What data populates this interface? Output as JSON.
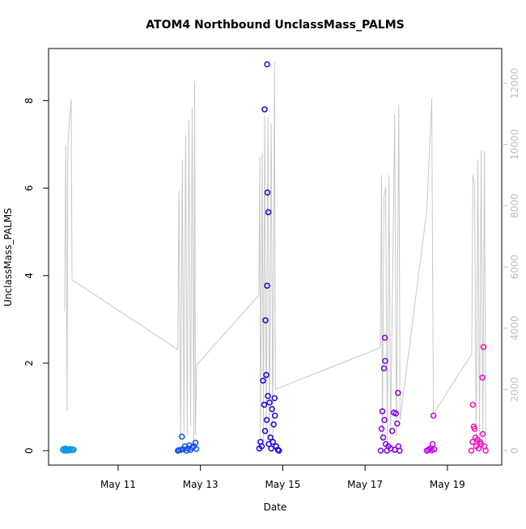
{
  "chart_data": {
    "type": "scatter",
    "title": "ATOM4 Northbound UnclassMass_PALMS",
    "x_label": "Date",
    "y_label": "UnclassMass_PALMS",
    "xlim": [
      9.31,
      20.32
    ],
    "xticks": [
      {
        "value": 11,
        "label": "May 11"
      },
      {
        "value": 13,
        "label": "May 13"
      },
      {
        "value": 15,
        "label": "May 15"
      },
      {
        "value": 17,
        "label": "May 17"
      },
      {
        "value": 19,
        "label": "May 19"
      }
    ],
    "ylim": [
      -0.33,
      9.19
    ],
    "yticks": [
      0,
      2,
      4,
      6,
      8
    ],
    "y2lim": [
      -476,
      13137
    ],
    "y2ticks": [
      0,
      2000,
      4000,
      6000,
      8000,
      10000,
      12000
    ],
    "y2_color": "#bebebe",
    "series": [
      {
        "color": "#0a9ae6",
        "x": [
          9.66,
          9.68,
          9.7,
          9.72,
          9.74,
          9.76,
          9.78,
          9.8,
          9.83,
          9.86,
          9.89,
          9.92
        ],
        "values": [
          0.02,
          0.04,
          0.0,
          0.05,
          0.01,
          0.03,
          0.0,
          0.02,
          0.04,
          0.01,
          0.03,
          0.02
        ]
      },
      {
        "color": "#1050e8",
        "x": [
          12.45,
          12.48,
          12.52,
          12.55,
          12.58,
          12.62,
          12.66,
          12.7,
          12.73,
          12.76,
          12.8,
          12.84,
          12.88,
          12.9
        ],
        "values": [
          0.0,
          0.01,
          0.02,
          0.32,
          0.03,
          0.1,
          0.0,
          0.05,
          0.12,
          0.02,
          0.07,
          0.1,
          0.18,
          0.04
        ]
      },
      {
        "color": "#2200dd",
        "x": [
          14.43,
          14.46,
          14.49,
          14.52,
          14.55,
          14.56,
          14.57,
          14.58,
          14.6,
          14.61,
          14.62,
          14.62,
          14.63,
          14.64,
          14.65,
          14.66,
          14.68,
          14.7,
          14.72,
          14.74,
          14.76,
          14.78,
          14.8,
          14.81,
          14.84,
          14.88,
          14.91
        ],
        "values": [
          0.05,
          0.2,
          0.1,
          1.6,
          1.05,
          7.8,
          0.45,
          2.98,
          1.73,
          0.7,
          8.83,
          3.77,
          5.9,
          1.25,
          5.45,
          0.15,
          1.1,
          0.3,
          0.05,
          0.95,
          0.2,
          0.6,
          1.2,
          0.8,
          0.1,
          0.02,
          0.0
        ]
      },
      {
        "color": "#8000e0",
        "x": [
          17.38,
          17.4,
          17.42,
          17.44,
          17.46,
          17.47,
          17.48,
          17.49,
          17.5,
          17.53,
          17.57,
          17.62,
          17.66,
          17.7,
          17.72,
          17.75,
          17.78,
          17.8,
          17.81,
          17.84
        ],
        "values": [
          0.0,
          0.5,
          0.9,
          0.3,
          1.88,
          0.7,
          2.58,
          2.05,
          0.15,
          0.0,
          0.1,
          0.05,
          0.45,
          0.87,
          0.02,
          0.85,
          0.62,
          1.32,
          0.1,
          0.0
        ]
      },
      {
        "color": "#c000e6",
        "x": [
          18.5,
          18.54,
          18.58,
          18.62,
          18.64,
          18.66,
          18.68
        ],
        "values": [
          0.0,
          0.02,
          0.05,
          0.01,
          0.15,
          0.8,
          0.03
        ]
      },
      {
        "color": "#f010c0",
        "x": [
          19.58,
          19.61,
          19.62,
          19.64,
          19.66,
          19.68,
          19.7,
          19.73,
          19.76,
          19.79,
          19.82,
          19.85,
          19.86,
          19.88,
          19.9,
          19.93
        ],
        "values": [
          0.0,
          0.2,
          1.05,
          0.55,
          0.5,
          0.3,
          0.1,
          0.25,
          0.05,
          0.2,
          0.15,
          1.67,
          0.38,
          2.37,
          0.1,
          0.0
        ]
      },
      {
        "type": "line",
        "axis": "y2",
        "color": "#c8c8c8",
        "x": [
          9.7,
          9.73,
          9.76,
          9.78,
          9.8,
          9.86,
          9.88,
          12.45,
          12.48,
          12.52,
          12.56,
          12.6,
          12.64,
          12.68,
          12.72,
          12.76,
          12.8,
          12.84,
          12.86,
          12.88,
          12.91,
          14.42,
          14.44,
          14.46,
          14.5,
          14.53,
          14.56,
          14.6,
          14.64,
          14.68,
          14.72,
          14.76,
          14.8,
          14.82,
          17.37,
          17.4,
          17.42,
          17.46,
          17.5,
          17.54,
          17.58,
          17.62,
          17.72,
          17.76,
          17.82,
          17.85,
          18.5,
          18.62,
          18.66,
          19.59,
          19.62,
          19.66,
          19.7,
          19.74,
          19.78,
          19.82,
          19.86,
          19.9,
          19.93
        ],
        "values": [
          4550,
          9970,
          1300,
          9970,
          10400,
          11470,
          5580,
          3300,
          8500,
          400,
          9500,
          600,
          10300,
          500,
          10800,
          800,
          11200,
          300,
          12080,
          500,
          2800,
          5080,
          9600,
          400,
          9700,
          300,
          10950,
          500,
          10900,
          400,
          10700,
          300,
          12700,
          2000,
          3360,
          9000,
          300,
          8300,
          8600,
          200,
          9000,
          400,
          11000,
          500,
          11300,
          1000,
          7850,
          11500,
          1200,
          3150,
          9000,
          8700,
          300,
          9500,
          400,
          9800,
          500,
          9800,
          300
        ]
      }
    ]
  }
}
